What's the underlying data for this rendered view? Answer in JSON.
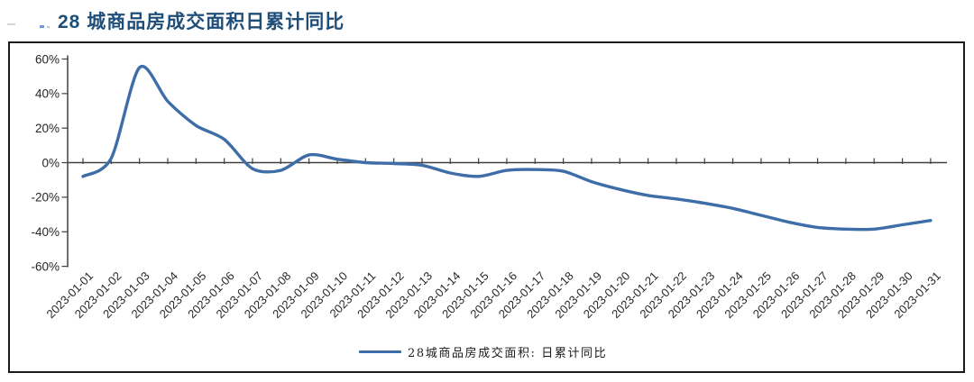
{
  "title": "28 城商品房成交面积日累计同比",
  "colors": {
    "title": "#1f4e79",
    "line": "#3e6da8",
    "axis": "#404040",
    "text": "#262626",
    "panel_border": "#1b1b1b",
    "background": "#ffffff"
  },
  "legend": {
    "label": "28城商品房成交面积: 日累计同比"
  },
  "chart_data": {
    "type": "line",
    "title": "28 城商品房成交面积日累计同比",
    "xlabel": "",
    "ylabel": "",
    "ylim": [
      -60,
      60
    ],
    "ytick_step": 20,
    "ytick_labels": [
      "60%",
      "40%",
      "20%",
      "0%",
      "-20%",
      "-40%",
      "-60%"
    ],
    "grid": false,
    "legend_position": "bottom",
    "x": [
      "2023-01-01",
      "2023-01-02",
      "2023-01-03",
      "2023-01-04",
      "2023-01-05",
      "2023-01-06",
      "2023-01-07",
      "2023-01-08",
      "2023-01-09",
      "2023-01-10",
      "2023-01-11",
      "2023-01-12",
      "2023-01-13",
      "2023-01-14",
      "2023-01-15",
      "2023-01-16",
      "2023-01-17",
      "2023-01-18",
      "2023-01-19",
      "2023-01-20",
      "2023-01-21",
      "2023-01-22",
      "2023-01-23",
      "2023-01-24",
      "2023-01-25",
      "2023-01-26",
      "2023-01-27",
      "2023-01-28",
      "2023-01-29",
      "2023-01-30",
      "2023-01-31"
    ],
    "series": [
      {
        "name": "28城商品房成交面积: 日累计同比",
        "color": "#3e6da8",
        "unit": "%",
        "values": [
          -8,
          2.5,
          55,
          35.5,
          21.5,
          13.5,
          -3.5,
          -4.5,
          4.5,
          2,
          0,
          -0.5,
          -1.5,
          -6,
          -8,
          -4.5,
          -4,
          -5,
          -11,
          -15.5,
          -19,
          -21,
          -23.5,
          -26.5,
          -30.5,
          -34.5,
          -37.5,
          -38.5,
          -38.5,
          -36,
          -33.5
        ]
      }
    ]
  }
}
